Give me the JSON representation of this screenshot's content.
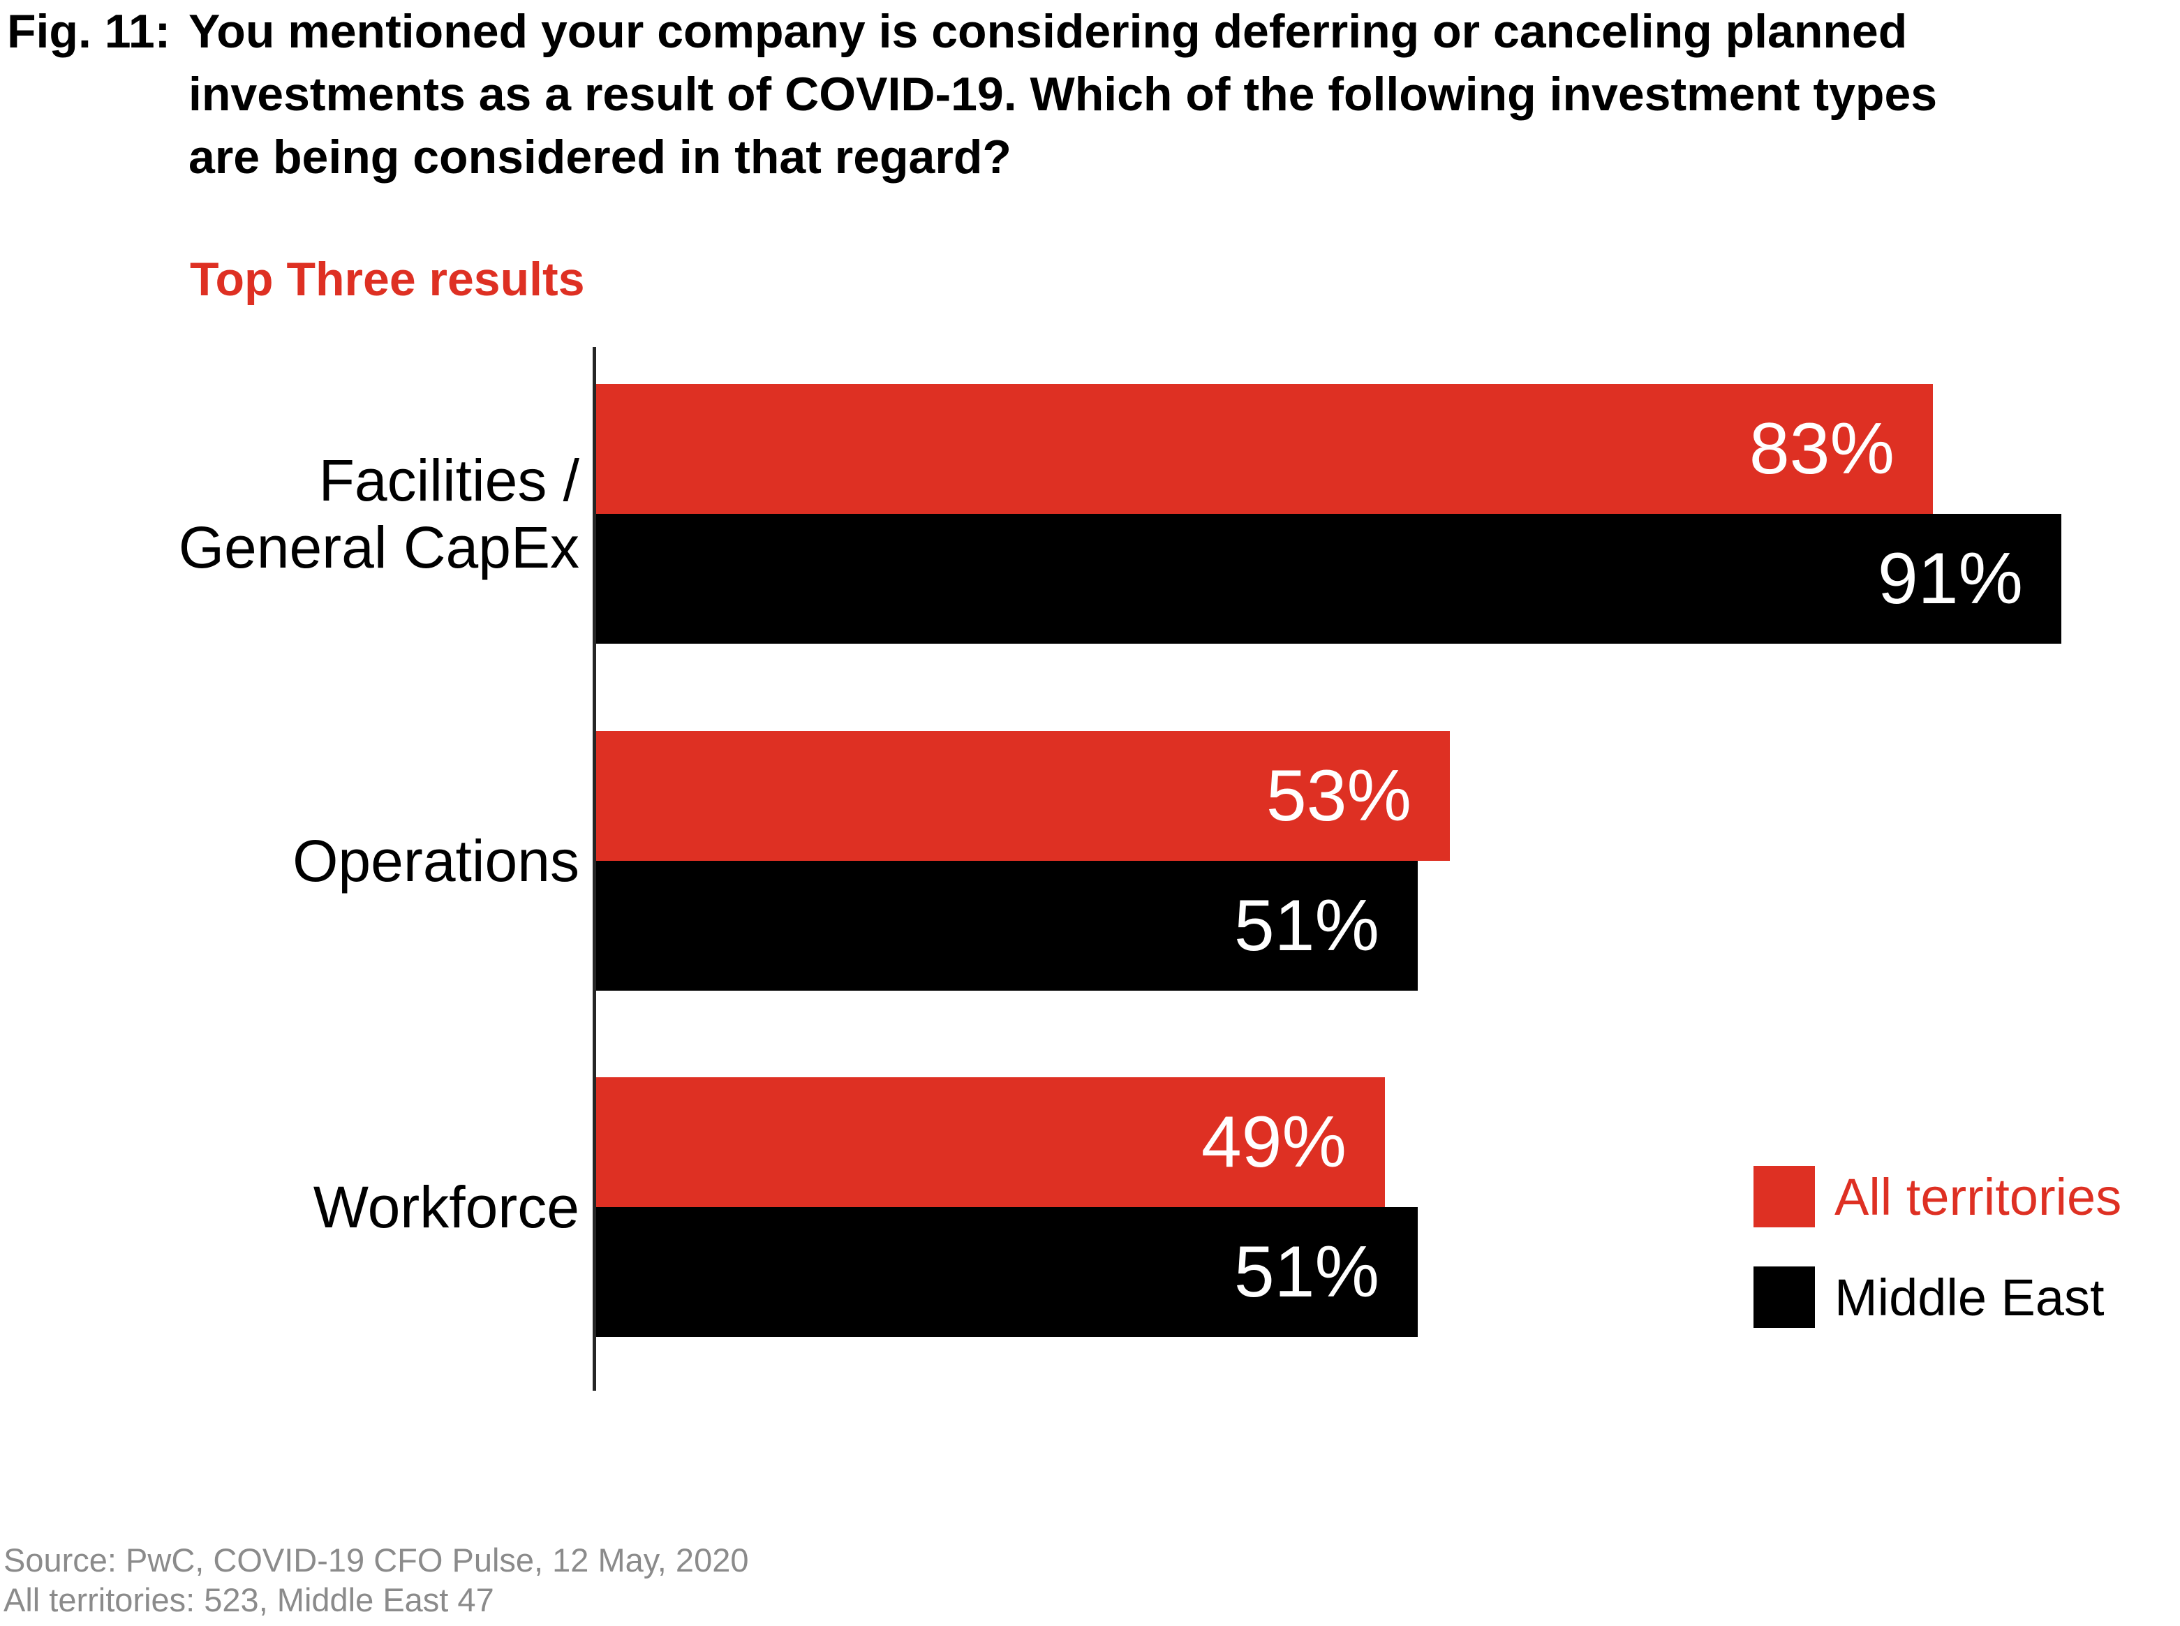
{
  "figure": {
    "label": "Fig. 11:",
    "title_lines": [
      "You mentioned your company is considering deferring or canceling planned",
      "investments as a result of COVID-19. Which of the following investment types",
      "are being considered in that regard?"
    ],
    "subtitle": "Top Three results"
  },
  "colors": {
    "red": "#DE3023",
    "black": "#000000",
    "axis": "#262626",
    "source_text": "#8B8B8B",
    "value_label_text": "#FFFFFF"
  },
  "chart_data": {
    "type": "bar",
    "orientation": "horizontal",
    "title": "Top Three results",
    "categories": [
      "Facilities / General CapEx",
      "Operations",
      "Workforce"
    ],
    "category_display_lines": [
      [
        "Facilities /",
        "General CapEx"
      ],
      [
        "Operations"
      ],
      [
        "Workforce"
      ]
    ],
    "series": [
      {
        "name": "All territories",
        "color": "#DE3023",
        "values": [
          83,
          53,
          49
        ]
      },
      {
        "name": "Middle East",
        "color": "#000000",
        "values": [
          91,
          51,
          51
        ]
      }
    ],
    "value_suffix": "%",
    "value_labels": [
      [
        "83%",
        "53%",
        "49%"
      ],
      [
        "91%",
        "51%",
        "51%"
      ]
    ],
    "xlim": [
      0,
      100
    ],
    "grid": false,
    "legend_position": "right-middle"
  },
  "source": {
    "line1": "Source: PwC, COVID-19 CFO Pulse, 12 May, 2020",
    "line2": "All territories: 523, Middle East 47"
  }
}
